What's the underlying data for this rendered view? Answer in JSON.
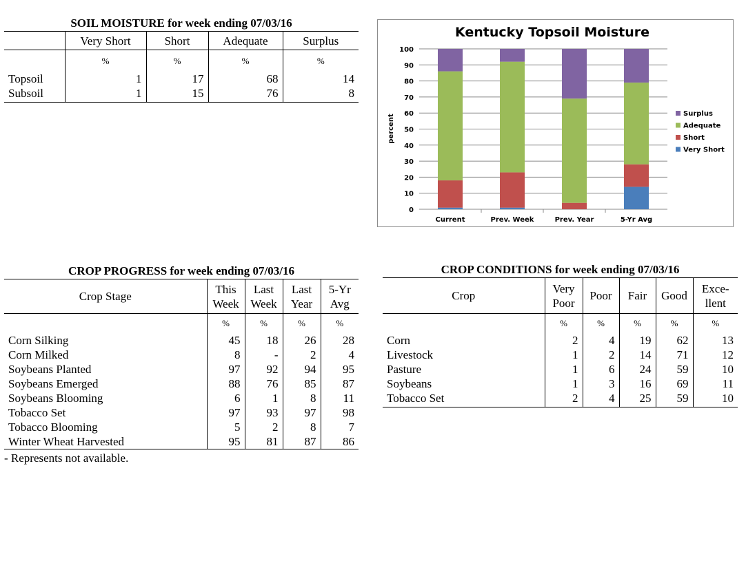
{
  "soil_moisture": {
    "title": "SOIL MOISTURE for week ending 07/03/16",
    "columns": [
      "Very Short",
      "Short",
      "Adequate",
      "Surplus"
    ],
    "units": [
      "%",
      "%",
      "%",
      "%"
    ],
    "rows": [
      {
        "label": "Topsoil",
        "values": [
          "1",
          "17",
          "68",
          "14"
        ]
      },
      {
        "label": "Subsoil",
        "values": [
          "1",
          "15",
          "76",
          "8"
        ]
      }
    ]
  },
  "crop_progress": {
    "title": "CROP PROGRESS for week ending 07/03/16",
    "stage_header": "Crop Stage",
    "columns": [
      {
        "line1": "This",
        "line2": "Week"
      },
      {
        "line1": "Last",
        "line2": "Week"
      },
      {
        "line1": "Last",
        "line2": "Year"
      },
      {
        "line1": "5-Yr",
        "line2": "Avg"
      }
    ],
    "units": [
      "%",
      "%",
      "%",
      "%"
    ],
    "rows": [
      {
        "label": "Corn Silking",
        "values": [
          "45",
          "18",
          "26",
          "28"
        ]
      },
      {
        "label": "Corn Milked",
        "values": [
          "8",
          "-",
          "2",
          "4"
        ]
      },
      {
        "label": "Soybeans Planted",
        "values": [
          "97",
          "92",
          "94",
          "95"
        ]
      },
      {
        "label": "Soybeans Emerged",
        "values": [
          "88",
          "76",
          "85",
          "87"
        ]
      },
      {
        "label": "Soybeans Blooming",
        "values": [
          "6",
          "1",
          "8",
          "11"
        ]
      },
      {
        "label": "Tobacco Set",
        "values": [
          "97",
          "93",
          "97",
          "98"
        ]
      },
      {
        "label": "Tobacco Blooming",
        "values": [
          "5",
          "2",
          "8",
          "7"
        ]
      },
      {
        "label": "Winter Wheat Harvested",
        "values": [
          "95",
          "81",
          "87",
          "86"
        ]
      }
    ],
    "note": "- Represents not available."
  },
  "crop_conditions": {
    "title": "CROP CONDITIONS for week ending 07/03/16",
    "crop_header": "Crop",
    "columns": [
      {
        "line1": "Very",
        "line2": "Poor"
      },
      {
        "line1": "Poor",
        "line2": ""
      },
      {
        "line1": "Fair",
        "line2": ""
      },
      {
        "line1": "Good",
        "line2": ""
      },
      {
        "line1": "Exce-",
        "line2": "llent"
      }
    ],
    "units": [
      "%",
      "%",
      "%",
      "%",
      "%"
    ],
    "rows": [
      {
        "label": "Corn",
        "values": [
          "2",
          "4",
          "19",
          "62",
          "13"
        ]
      },
      {
        "label": "Livestock",
        "values": [
          "1",
          "2",
          "14",
          "71",
          "12"
        ]
      },
      {
        "label": "Pasture",
        "values": [
          "1",
          "6",
          "24",
          "59",
          "10"
        ]
      },
      {
        "label": "Soybeans",
        "values": [
          "1",
          "3",
          "16",
          "69",
          "11"
        ]
      },
      {
        "label": "Tobacco Set",
        "values": [
          "2",
          "4",
          "25",
          "59",
          "10"
        ]
      }
    ]
  },
  "chart_data": {
    "type": "bar",
    "stacked": true,
    "title": "Kentucky Topsoil Moisture",
    "xlabel": "",
    "ylabel": "percent",
    "ylim": [
      0,
      100
    ],
    "yticks": [
      0,
      10,
      20,
      30,
      40,
      50,
      60,
      70,
      80,
      90,
      100
    ],
    "grid": true,
    "legend_position": "right",
    "categories": [
      "Current",
      "Prev. Week",
      "Prev. Year",
      "5-Yr Avg"
    ],
    "series": [
      {
        "name": "Very Short",
        "color": "#4a7ebb",
        "values": [
          1,
          1,
          0,
          14
        ]
      },
      {
        "name": "Short",
        "color": "#c0504d",
        "values": [
          17,
          22,
          4,
          14
        ]
      },
      {
        "name": "Adequate",
        "color": "#9bbb59",
        "values": [
          68,
          69,
          65,
          51
        ]
      },
      {
        "name": "Surplus",
        "color": "#8064a2",
        "values": [
          14,
          8,
          31,
          21
        ]
      }
    ],
    "legend_order": [
      "Surplus",
      "Adequate",
      "Short",
      "Very Short"
    ]
  }
}
